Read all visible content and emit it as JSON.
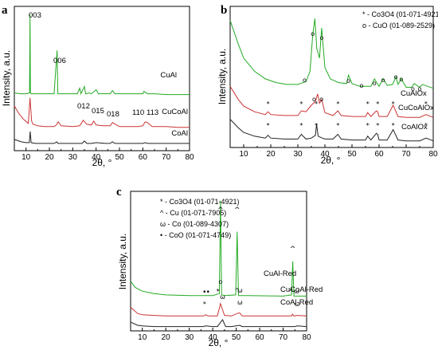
{
  "chart_data": [
    {
      "panel": "a",
      "type": "line",
      "xlabel": "2θ, °",
      "ylabel": "Intensity, a.u.",
      "xlim": [
        5,
        80
      ],
      "xticks": [
        "10",
        "20",
        "30",
        "40",
        "50",
        "60",
        "70",
        "80"
      ],
      "series": [
        {
          "name": "CuAl",
          "color": "#22aa22",
          "x": [
            5,
            8,
            10,
            11.5,
            11.7,
            11.9,
            12.2,
            14,
            18,
            22,
            23.3,
            23.6,
            24,
            28,
            32,
            33,
            33.5,
            35,
            35.5,
            37,
            38,
            40,
            41,
            42,
            46,
            47,
            48,
            50,
            55,
            60,
            60.5,
            61,
            62,
            65,
            70,
            75,
            80
          ],
          "y": [
            92,
            91,
            91,
            92,
            190,
            92,
            91,
            91,
            91,
            91,
            145,
            91,
            91,
            91,
            91,
            98,
            91,
            100,
            91,
            92,
            91,
            96,
            91,
            91,
            91,
            95,
            91,
            91,
            91,
            91,
            94,
            93,
            91,
            91,
            90,
            90,
            90
          ]
        },
        {
          "name": "CuCoAl",
          "color": "#cc3333",
          "x": [
            5,
            7,
            9,
            11,
            11.7,
            12.4,
            13,
            15,
            18,
            20,
            22,
            23,
            23.7,
            25,
            30,
            33,
            34.5,
            36,
            38,
            39,
            40,
            43,
            46,
            47,
            50,
            55,
            58,
            60,
            61,
            62,
            64,
            70,
            75,
            80
          ],
          "y": [
            76,
            66,
            59,
            54,
            86,
            57,
            53,
            51,
            50,
            50,
            50,
            52,
            56,
            51,
            50,
            51,
            58,
            53,
            52,
            57,
            52,
            51,
            51,
            55,
            50,
            50,
            50,
            51,
            56,
            55,
            50,
            50,
            49,
            49
          ]
        },
        {
          "name": "CoAl",
          "color": "#222222",
          "x": [
            5,
            8,
            10,
            11.4,
            11.8,
            12.2,
            14,
            18,
            22,
            23.2,
            23.6,
            24,
            30,
            34,
            35,
            36,
            38,
            40,
            44,
            46,
            47,
            48,
            55,
            60,
            61,
            62,
            70,
            80
          ],
          "y": [
            34,
            31,
            30,
            30,
            44,
            30,
            29,
            29,
            29,
            31,
            29,
            29,
            29,
            29,
            32,
            29,
            29,
            30,
            29,
            29,
            31,
            29,
            29,
            29,
            30,
            29,
            29,
            29
          ]
        }
      ],
      "annotations": [
        "003",
        "006",
        "012",
        "015",
        "018",
        "110",
        "113"
      ]
    },
    {
      "panel": "b",
      "type": "line",
      "xlabel": "2θ, °",
      "ylabel": "Intensity, a.u.",
      "xlim": [
        5,
        80
      ],
      "xticks": [
        "10",
        "20",
        "30",
        "40",
        "50",
        "60",
        "70",
        "80"
      ],
      "legend": [
        "* - Co3O4 (01-071-4921)",
        "ο - CuO   (01-089-2529)"
      ],
      "series": [
        {
          "name": "CuAlOx",
          "color": "#22aa22",
          "x": [
            5,
            8,
            10,
            14,
            18,
            22,
            26,
            30,
            33,
            34.5,
            35.5,
            36.3,
            37,
            38,
            38.8,
            40,
            42,
            45,
            48,
            48.7,
            50,
            53,
            55,
            57,
            58.3,
            60,
            61.5,
            63,
            65,
            66.2,
            67,
            68.2,
            70,
            72,
            73,
            75,
            76,
            80
          ],
          "y": [
            150,
            125,
            110,
            96,
            88,
            84,
            82,
            82,
            85,
            96,
            135,
            152,
            120,
            110,
            142,
            100,
            88,
            84,
            83,
            92,
            83,
            80,
            80,
            80,
            88,
            80,
            88,
            81,
            82,
            90,
            82,
            88,
            79,
            79,
            83,
            79,
            82,
            78
          ]
        },
        {
          "name": "CuCoAlOx",
          "color": "#cc3333",
          "x": [
            5,
            8,
            10,
            14,
            18,
            19,
            20,
            25,
            30,
            31.3,
            33,
            35,
            36.5,
            37.3,
            38,
            38.8,
            40,
            43,
            44.8,
            46,
            50,
            55,
            55.8,
            57,
            59,
            59.5,
            60,
            63,
            65.2,
            67,
            70,
            75,
            77.3,
            80
          ],
          "y": [
            80,
            66,
            59,
            53,
            50,
            53,
            50,
            49,
            49,
            54,
            53,
            60,
            64,
            72,
            62,
            66,
            52,
            49,
            54,
            49,
            48,
            48,
            52,
            48,
            54,
            53,
            48,
            48,
            60,
            48,
            47,
            47,
            50,
            47
          ]
        },
        {
          "name": "CoAlOx",
          "color": "#222222",
          "x": [
            5,
            8,
            10,
            14,
            18,
            19,
            20,
            25,
            30,
            31.3,
            33,
            35,
            36.5,
            36.9,
            37.5,
            39,
            40,
            43,
            44.8,
            46,
            50,
            55,
            55.8,
            57,
            59,
            59.5,
            60,
            63,
            65.2,
            67,
            70,
            75,
            77.3,
            80
          ],
          "y": [
            45,
            36,
            31,
            27,
            25,
            28,
            25,
            24,
            24,
            29,
            24,
            25,
            28,
            40,
            27,
            25,
            24,
            24,
            29,
            24,
            23,
            23,
            27,
            23,
            30,
            29,
            23,
            23,
            34,
            23,
            22,
            22,
            25,
            22
          ]
        }
      ]
    },
    {
      "panel": "c",
      "type": "line",
      "xlabel": "2θ, °",
      "ylabel": "Intensity, a.u.",
      "xlim": [
        5,
        80
      ],
      "xticks": [
        "10",
        "20",
        "30",
        "40",
        "50",
        "60",
        "70",
        "80"
      ],
      "legend": [
        "* - Co3O4 (01-071-4921)",
        "^ - Cu   (01-071-7905)",
        "ω - Co   (01-089-4307)",
        "• - CoO  (01-071-4749)"
      ],
      "series": [
        {
          "name": "CuAl-Red",
          "color": "#22aa22",
          "x": [
            5,
            7,
            10,
            15,
            20,
            30,
            40,
            42.8,
            43.3,
            43.8,
            45,
            49.8,
            50.4,
            51,
            55,
            70,
            73.6,
            74.1,
            74.6,
            80
          ],
          "y": [
            80,
            70,
            64,
            60,
            58,
            57,
            57,
            60,
            210,
            58,
            57,
            58,
            160,
            57,
            57,
            56,
            58,
            112,
            56,
            56
          ]
        },
        {
          "name": "CuCoAl-Red",
          "color": "#cc3333",
          "x": [
            5,
            8,
            10,
            15,
            20,
            30,
            36,
            37,
            38,
            40,
            42,
            43.3,
            44.2,
            45,
            48,
            50.4,
            51.5,
            52.5,
            60,
            73.5,
            74,
            74.5,
            76,
            80
          ],
          "y": [
            38,
            28,
            26,
            25,
            24,
            24,
            24,
            26,
            24,
            24,
            24,
            44,
            34,
            25,
            24,
            28,
            29,
            24,
            24,
            24,
            27,
            24,
            25,
            24
          ]
        },
        {
          "name": "CoAl-Red",
          "color": "#222222",
          "x": [
            5,
            8,
            10,
            15,
            20,
            30,
            36,
            37,
            40,
            42,
            44.2,
            45.5,
            48,
            51.5,
            52.5,
            60,
            75,
            76,
            80
          ],
          "y": [
            14,
            9,
            8,
            7,
            7,
            7,
            7,
            8,
            7,
            7,
            18,
            7,
            7,
            9,
            7,
            7,
            7,
            8,
            7
          ]
        }
      ]
    }
  ],
  "panel_text": {
    "a": {
      "letter": "a",
      "labels": {
        "003": "003",
        "006": "006",
        "012": "012",
        "015": "015",
        "018": "018",
        "110": "110",
        "113": "113"
      }
    },
    "b": {
      "letter": "b"
    },
    "c": {
      "letter": "c"
    }
  }
}
